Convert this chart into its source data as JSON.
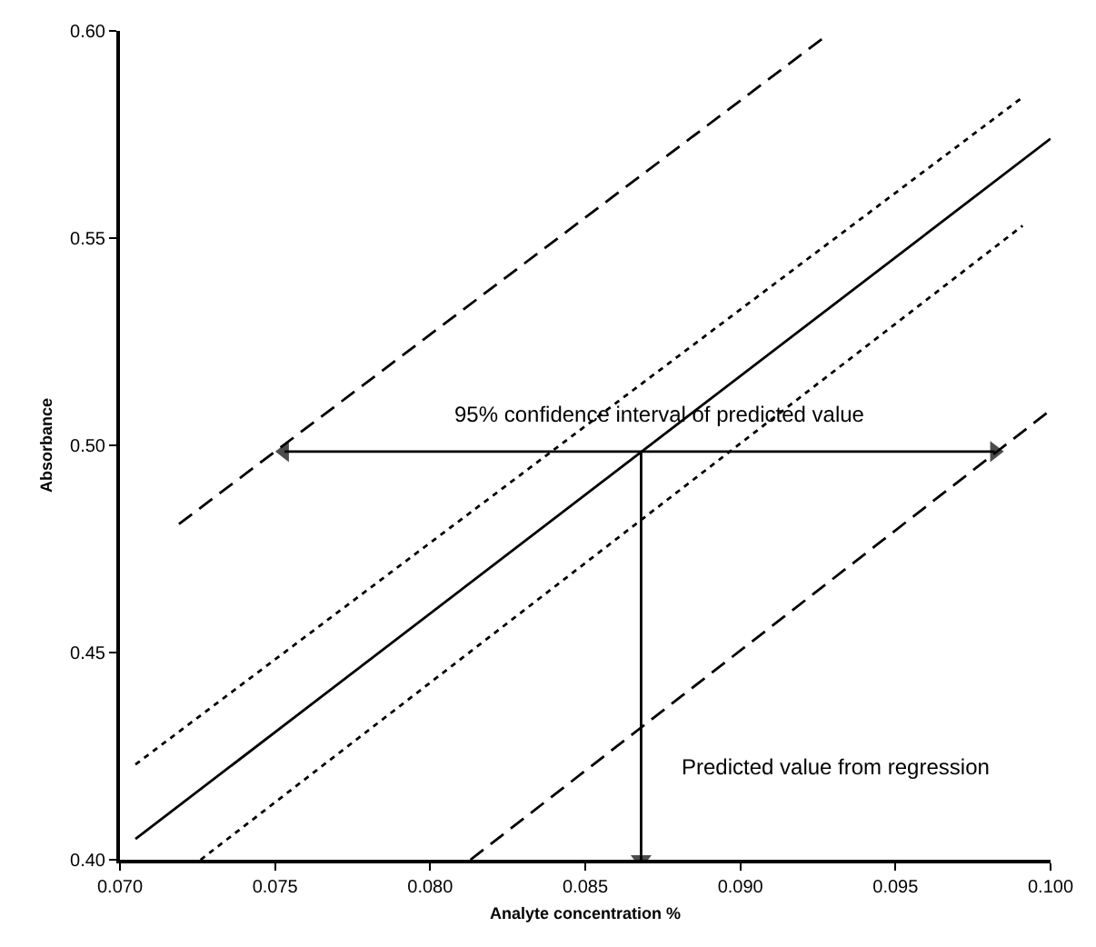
{
  "chart_data": {
    "type": "line",
    "xlabel": "Analyte concentration %",
    "ylabel": "Absorbance",
    "xlim": [
      0.07,
      0.1
    ],
    "ylim": [
      0.4,
      0.6
    ],
    "xticks": [
      {
        "value": 0.07,
        "label": "0.070"
      },
      {
        "value": 0.075,
        "label": "0.075"
      },
      {
        "value": 0.08,
        "label": "0.080"
      },
      {
        "value": 0.085,
        "label": "0.085"
      },
      {
        "value": 0.09,
        "label": "0.090"
      },
      {
        "value": 0.095,
        "label": "0.095"
      },
      {
        "value": 0.1,
        "label": "0.100"
      }
    ],
    "yticks": [
      {
        "value": 0.4,
        "label": "0.40"
      },
      {
        "value": 0.45,
        "label": "0.45"
      },
      {
        "value": 0.5,
        "label": "0.50"
      },
      {
        "value": 0.55,
        "label": "0.55"
      },
      {
        "value": 0.6,
        "label": "0.60"
      }
    ],
    "marker": "none",
    "series": [
      {
        "color": "#000000",
        "line_style": "solid",
        "x": [
          0.0705,
          0.1
        ],
        "values": [
          0.405,
          0.574
        ]
      },
      {
        "color": "#000000",
        "line_style": "dotted",
        "x": [
          0.0705,
          0.0991
        ],
        "values": [
          0.423,
          0.584
        ]
      },
      {
        "color": "#000000",
        "line_style": "dotted",
        "x": [
          0.0726,
          0.0991
        ],
        "values": [
          0.4,
          0.553
        ]
      },
      {
        "color": "#000000",
        "line_style": "dashed",
        "x": [
          0.0719,
          0.0928
        ],
        "values": [
          0.481,
          0.599
        ]
      },
      {
        "color": "#000000",
        "line_style": "dashed",
        "x": [
          0.0813,
          0.1
        ],
        "values": [
          0.4,
          0.5085
        ]
      },
      {
        "color": "#000000",
        "line_style": "solid",
        "marker": "triangle",
        "x": [
          0.0753,
          0.0982
        ],
        "values": [
          0.4985,
          0.4985
        ]
      },
      {
        "color": "#000000",
        "line_style": "solid",
        "marker": "triangle",
        "x": [
          0.0868,
          0.0868
        ],
        "values": [
          0.4985,
          0.4
        ]
      }
    ],
    "annotations": [
      "95% confidence interval of predicted value",
      "Predicted value from regression"
    ]
  }
}
